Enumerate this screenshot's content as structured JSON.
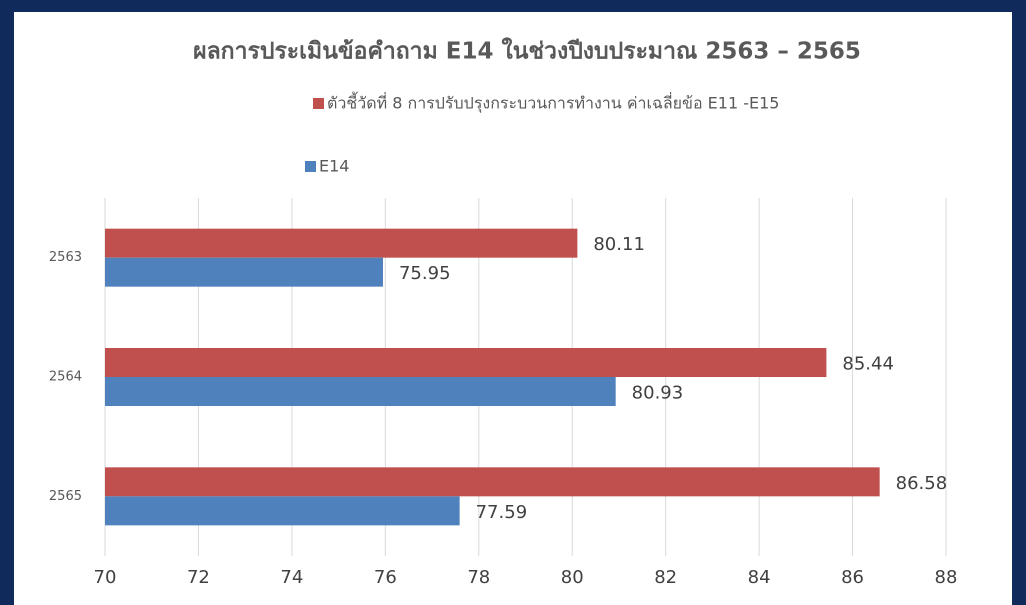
{
  "chart_data": {
    "type": "bar",
    "orientation": "horizontal",
    "title": "ผลการประเมินข้อคำถาม E14 ในช่วงปีงบประมาณ 2563 – 2565",
    "categories": [
      "2563",
      "2564",
      "2565"
    ],
    "series": [
      {
        "name": "ตัวชี้วัดที่ 8 การปรับปรุงกระบวนการทำงาน ค่าเฉลี่ยข้อ E11 -E15",
        "color": "#c0504d",
        "values": [
          80.11,
          85.44,
          86.58
        ]
      },
      {
        "name": "E14",
        "color": "#4f81bd",
        "values": [
          75.95,
          80.93,
          77.59
        ]
      }
    ],
    "xlim": [
      70,
      88
    ],
    "xticks": [
      70,
      72,
      74,
      76,
      78,
      80,
      82,
      84,
      86,
      88
    ],
    "grid": true
  }
}
